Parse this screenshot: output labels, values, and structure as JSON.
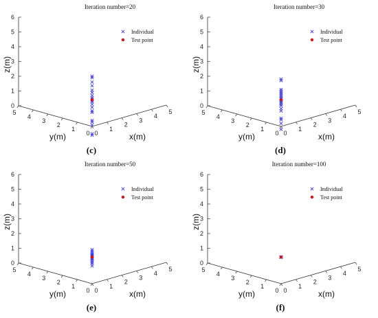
{
  "figure": {
    "colors": {
      "individual": "#3a3ae6",
      "test_point": "#e01010",
      "axis": "#333333"
    },
    "panels": [
      {
        "sublabel": "(c)",
        "chart_data": {
          "type": "scatter",
          "title": "Iteration number=20",
          "xlabel": "x(m)",
          "ylabel": "y(m)",
          "zlabel": "z(m)",
          "xlim": [
            0,
            5
          ],
          "ylim": [
            0,
            5
          ],
          "zlim": [
            0,
            6
          ],
          "xticks": [
            "0",
            "1",
            "2",
            "3",
            "4",
            "5"
          ],
          "yticks": [
            "0",
            "1",
            "2",
            "3",
            "4",
            "5"
          ],
          "zticks": [
            "0",
            "1",
            "2",
            "3",
            "4",
            "5",
            "6"
          ],
          "legend": {
            "position": "top-right",
            "entries": [
              "Individual",
              "Test point"
            ]
          },
          "series": [
            {
              "name": "Individual",
              "marker": "x",
              "points": [
                [
                  0,
                  0,
                  3.4
                ],
                [
                  0,
                  0,
                  3.3
                ],
                [
                  0,
                  0,
                  3.0
                ],
                [
                  0,
                  0,
                  2.75
                ],
                [
                  0,
                  0,
                  2.45
                ],
                [
                  0,
                  0,
                  2.3
                ],
                [
                  0,
                  0,
                  2.1
                ],
                [
                  0,
                  0,
                  1.95
                ],
                [
                  0,
                  0,
                  1.85
                ],
                [
                  0,
                  0,
                  1.75
                ],
                [
                  0,
                  0,
                  1.65
                ],
                [
                  0,
                  0,
                  1.5
                ],
                [
                  0,
                  0,
                  1.3
                ],
                [
                  0,
                  0,
                  1.05
                ],
                [
                  0,
                  0,
                  0.95
                ],
                [
                  0,
                  0,
                  0.4
                ],
                [
                  0,
                  0,
                  0.3
                ],
                [
                  0,
                  0,
                  0.1
                ],
                [
                  0,
                  0,
                  -0.5
                ],
                [
                  0,
                  0,
                  -0.6
                ]
              ]
            },
            {
              "name": "Test point",
              "marker": "dot",
              "points": [
                [
                  0,
                  0,
                  1.8
                ]
              ]
            }
          ]
        }
      },
      {
        "sublabel": "(d)",
        "chart_data": {
          "type": "scatter",
          "title": "Iteration number=30",
          "xlabel": "x(m)",
          "ylabel": "y(m)",
          "zlabel": "z(m)",
          "xlim": [
            0,
            5
          ],
          "ylim": [
            0,
            5
          ],
          "zlim": [
            0,
            6
          ],
          "xticks": [
            "0",
            "1",
            "2",
            "3",
            "4",
            "5"
          ],
          "yticks": [
            "0",
            "1",
            "2",
            "3",
            "4",
            "5"
          ],
          "zticks": [
            "0",
            "1",
            "2",
            "3",
            "4",
            "5",
            "6"
          ],
          "legend": {
            "position": "top-right",
            "entries": [
              "Individual",
              "Test point"
            ]
          },
          "series": [
            {
              "name": "Individual",
              "marker": "x",
              "points": [
                [
                  0,
                  0,
                  3.2
                ],
                [
                  0,
                  0,
                  3.1
                ],
                [
                  0,
                  0,
                  2.5
                ],
                [
                  0,
                  0,
                  2.4
                ],
                [
                  0,
                  0,
                  2.3
                ],
                [
                  0,
                  0,
                  2.2
                ],
                [
                  0,
                  0,
                  2.1
                ],
                [
                  0,
                  0,
                  2.0
                ],
                [
                  0,
                  0,
                  1.9
                ],
                [
                  0,
                  0,
                  1.85
                ],
                [
                  0,
                  0,
                  1.75
                ],
                [
                  0,
                  0,
                  1.65
                ],
                [
                  0,
                  0,
                  1.6
                ],
                [
                  0,
                  0,
                  1.5
                ],
                [
                  0,
                  0,
                  1.4
                ],
                [
                  0,
                  0,
                  1.2
                ],
                [
                  0,
                  0,
                  1.05
                ],
                [
                  0,
                  0,
                  0.55
                ],
                [
                  0,
                  0,
                  0.45
                ],
                [
                  0,
                  0,
                  0.2
                ],
                [
                  0,
                  0,
                  -0.2
                ]
              ]
            },
            {
              "name": "Test point",
              "marker": "dot",
              "points": [
                [
                  0,
                  0,
                  1.8
                ]
              ]
            }
          ]
        }
      },
      {
        "sublabel": "(e)",
        "chart_data": {
          "type": "scatter",
          "title": "Iteration number=50",
          "xlabel": "x(m)",
          "ylabel": "y(m)",
          "zlabel": "z(m)",
          "xlim": [
            0,
            5
          ],
          "ylim": [
            0,
            5
          ],
          "zlim": [
            0,
            6
          ],
          "xticks": [
            "0",
            "1",
            "2",
            "3",
            "4",
            "5"
          ],
          "yticks": [
            "0",
            "1",
            "2",
            "3",
            "4",
            "5"
          ],
          "zticks": [
            "0",
            "1",
            "2",
            "3",
            "4",
            "5",
            "6"
          ],
          "legend": {
            "position": "top-right",
            "entries": [
              "Individual",
              "Test point"
            ]
          },
          "series": [
            {
              "name": "Individual",
              "marker": "x",
              "points": [
                [
                  0,
                  0,
                  2.3
                ],
                [
                  0,
                  0,
                  2.2
                ],
                [
                  0,
                  0,
                  2.1
                ],
                [
                  0,
                  0,
                  2.0
                ],
                [
                  0,
                  0,
                  1.95
                ],
                [
                  0,
                  0,
                  1.9
                ],
                [
                  0,
                  0,
                  1.85
                ],
                [
                  0,
                  0,
                  1.75
                ],
                [
                  0,
                  0,
                  1.7
                ],
                [
                  0,
                  0,
                  1.65
                ],
                [
                  0,
                  0,
                  1.55
                ],
                [
                  0,
                  0,
                  1.45
                ],
                [
                  0,
                  0,
                  1.35
                ],
                [
                  0,
                  0,
                  1.2
                ]
              ]
            },
            {
              "name": "Test point",
              "marker": "dot",
              "points": [
                [
                  0,
                  0,
                  1.8
                ]
              ]
            }
          ]
        }
      },
      {
        "sublabel": "(f)",
        "chart_data": {
          "type": "scatter",
          "title": "Iteration number=100",
          "xlabel": "x(m)",
          "ylabel": "y(m)",
          "zlabel": "z(m)",
          "xlim": [
            0,
            5
          ],
          "ylim": [
            0,
            5
          ],
          "zlim": [
            0,
            6
          ],
          "xticks": [
            "0",
            "1",
            "2",
            "3",
            "4",
            "5"
          ],
          "yticks": [
            "0",
            "1",
            "2",
            "3",
            "4",
            "5"
          ],
          "zticks": [
            "0",
            "1",
            "2",
            "3",
            "4",
            "5",
            "6"
          ],
          "legend": {
            "position": "top-right",
            "entries": [
              "Individual",
              "Test point"
            ]
          },
          "series": [
            {
              "name": "Individual",
              "marker": "x",
              "points": [
                [
                  0,
                  0,
                  1.82
                ],
                [
                  0,
                  0,
                  1.8
                ],
                [
                  0,
                  0,
                  1.78
                ]
              ]
            },
            {
              "name": "Test point",
              "marker": "dot",
              "points": [
                [
                  0,
                  0,
                  1.8
                ]
              ]
            }
          ]
        }
      }
    ]
  }
}
